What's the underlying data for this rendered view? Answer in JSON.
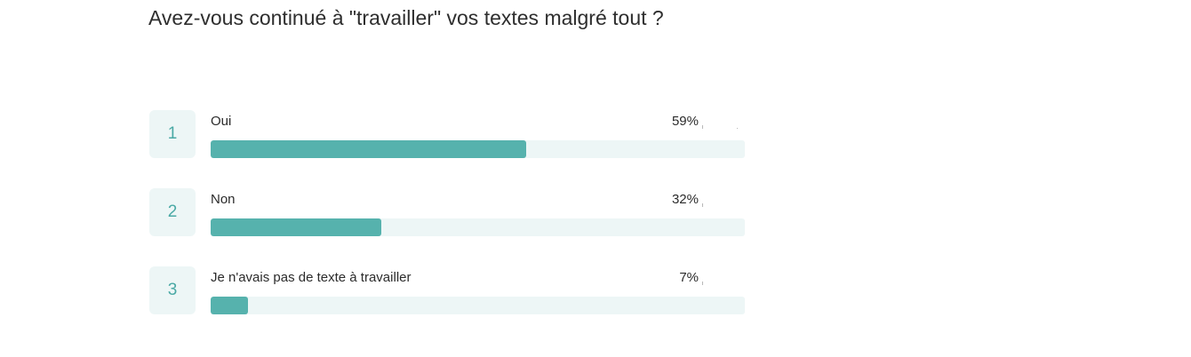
{
  "question": "Avez-vous continué à \"travailler\" vos textes malgré tout ?",
  "colors": {
    "bar_fill": "#56b2ad",
    "bar_track": "#edf6f6",
    "rank_text": "#4aa9a5"
  },
  "chart_data": {
    "type": "bar",
    "orientation": "horizontal",
    "title": "Avez-vous continué à \"travailler\" vos textes malgré tout ?",
    "categories": [
      "Oui",
      "Non",
      "Je n'avais pas de texte à travailler"
    ],
    "values": [
      59,
      32,
      7
    ],
    "value_labels": [
      "59%",
      "32%",
      "7%"
    ],
    "ranks": [
      "1",
      "2",
      "3"
    ],
    "xlim": [
      0,
      100
    ],
    "grid": false,
    "legend": "none"
  }
}
